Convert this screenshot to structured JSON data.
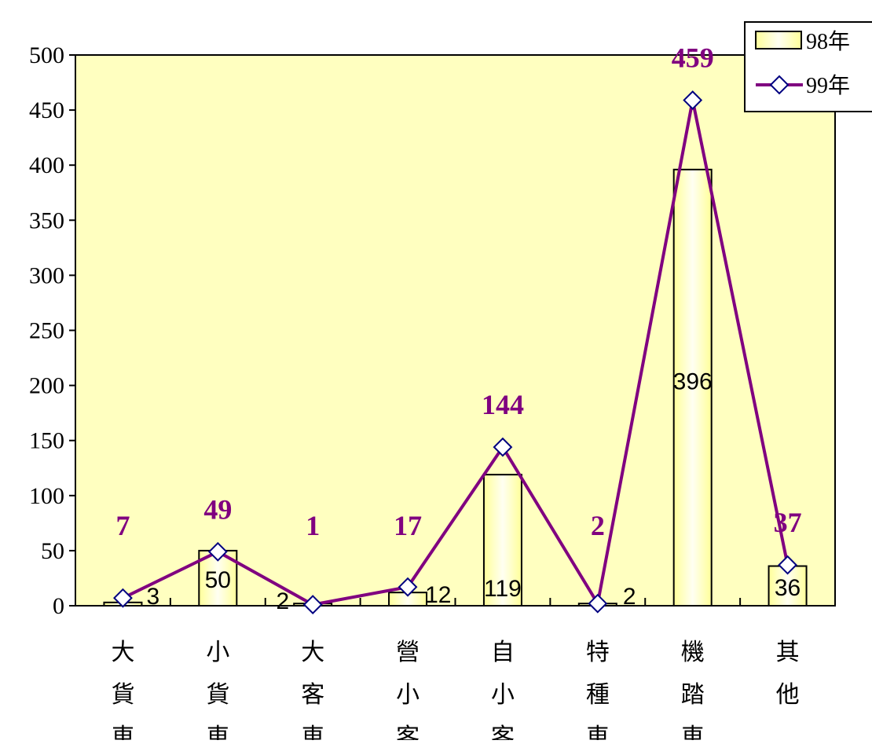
{
  "chart_data": {
    "type": "bar",
    "categories": [
      [
        "大",
        "貨",
        "車"
      ],
      [
        "小",
        "貨",
        "車"
      ],
      [
        "大",
        "客",
        "車"
      ],
      [
        "營",
        "小",
        "客"
      ],
      [
        "自",
        "小",
        "客"
      ],
      [
        "特",
        "種",
        "車"
      ],
      [
        "機",
        "踏",
        "車"
      ],
      [
        "其",
        "他"
      ]
    ],
    "series": [
      {
        "name": "98年",
        "type": "bar",
        "values": [
          3,
          50,
          2,
          12,
          119,
          2,
          396,
          36
        ]
      },
      {
        "name": "99年",
        "type": "line",
        "values": [
          7,
          49,
          1,
          17,
          144,
          2,
          459,
          37
        ]
      }
    ],
    "title": "",
    "xlabel": "",
    "ylabel": "",
    "ylim": [
      0,
      500
    ],
    "yticks": [
      0,
      50,
      100,
      150,
      200,
      250,
      300,
      350,
      400,
      450,
      500
    ],
    "grid": false,
    "legend": "top-right",
    "colors": {
      "plot_bg": "#FFFFC0",
      "bar_fill_edge": "#FFFF99",
      "bar_fill_center": "#FFFFF2",
      "bar_stroke": "#000000",
      "line": "#800080",
      "marker_fill": "#FFFFFF",
      "marker_stroke": "#000080",
      "line_label": "#800080"
    }
  }
}
